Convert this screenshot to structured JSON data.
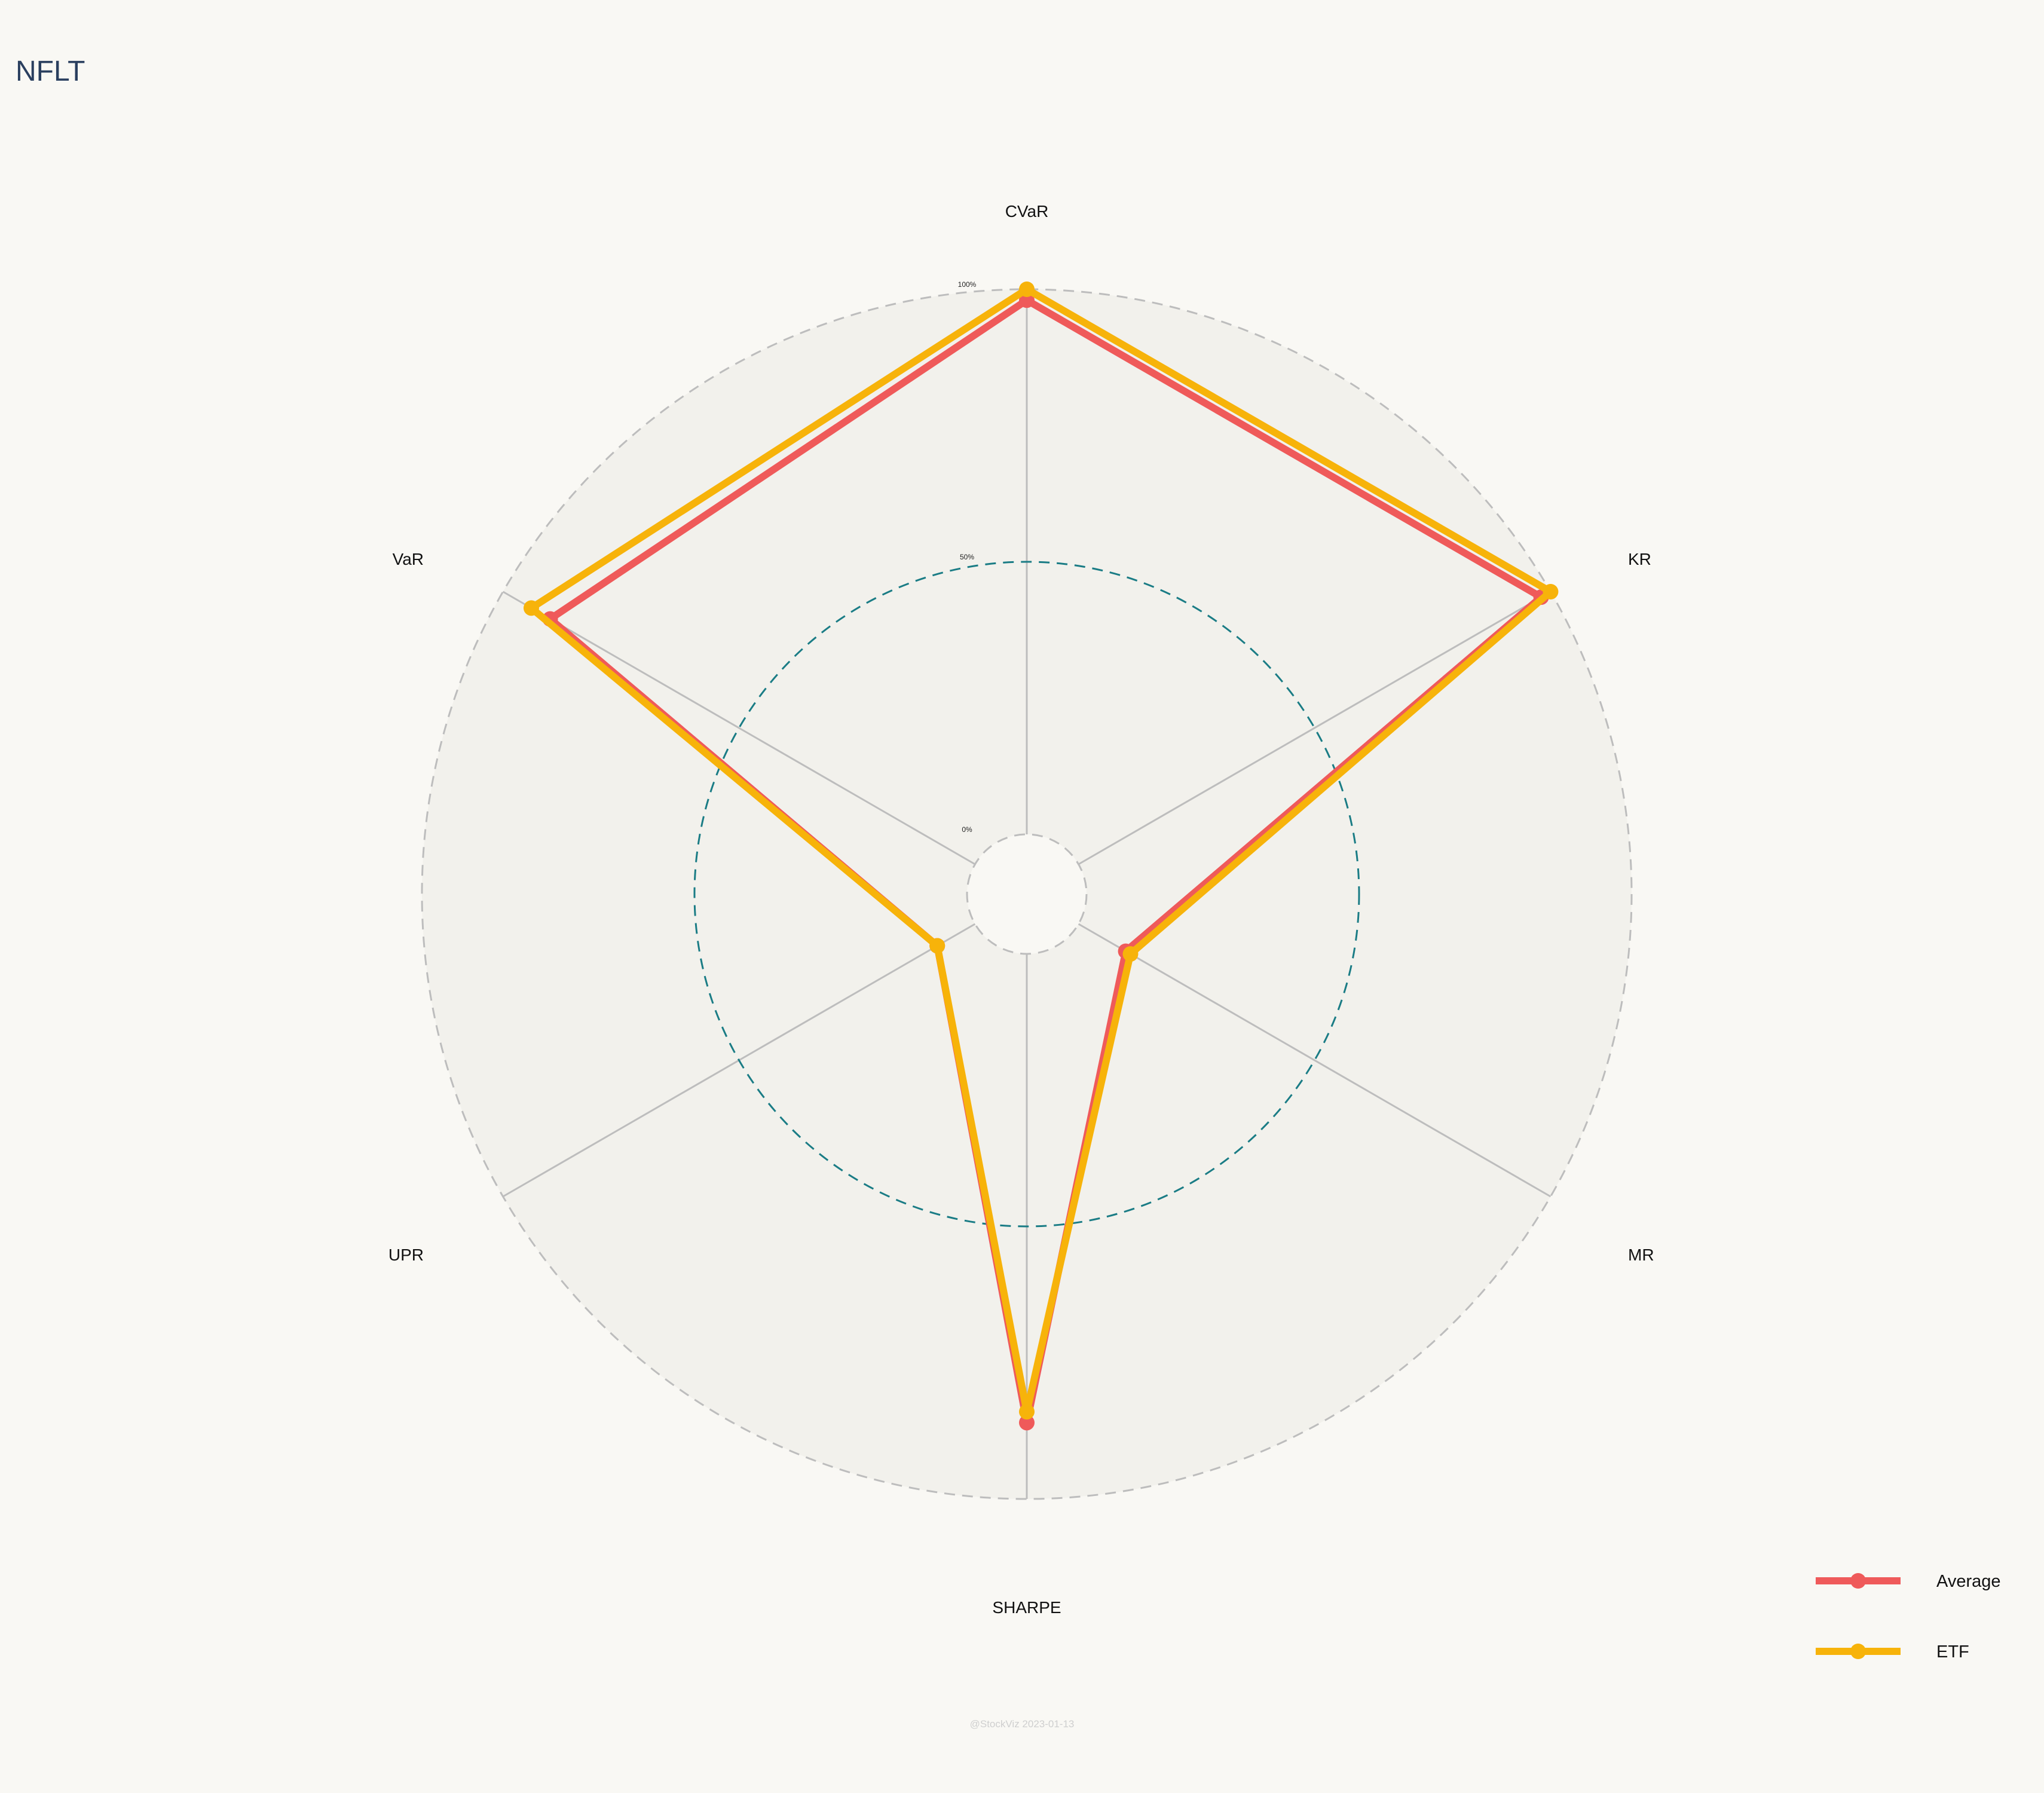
{
  "chart_data": {
    "type": "radar",
    "title": "NFLT",
    "axes": [
      "CVaR",
      "KR",
      "MR",
      "SHARPE",
      "UPR",
      "VaR"
    ],
    "radial_ticks": [
      {
        "value": 0,
        "label": "0%"
      },
      {
        "value": 50,
        "label": "50%"
      },
      {
        "value": 100,
        "label": "100%"
      }
    ],
    "range": [
      0,
      100
    ],
    "series": [
      {
        "name": "Average",
        "color": "#ef5a5a",
        "values": [
          98,
          98,
          10,
          86,
          8,
          90
        ]
      },
      {
        "name": "ETF",
        "color": "#f7b30a",
        "values": [
          100,
          100,
          11,
          84,
          8,
          94
        ]
      }
    ],
    "legend_position": "bottom-right",
    "grid_color": "#bdbdbd",
    "mid_ring_color": "#1a7c85",
    "panel_color": "#f2f1ec"
  },
  "watermark": "@StockViz 2023-01-13"
}
